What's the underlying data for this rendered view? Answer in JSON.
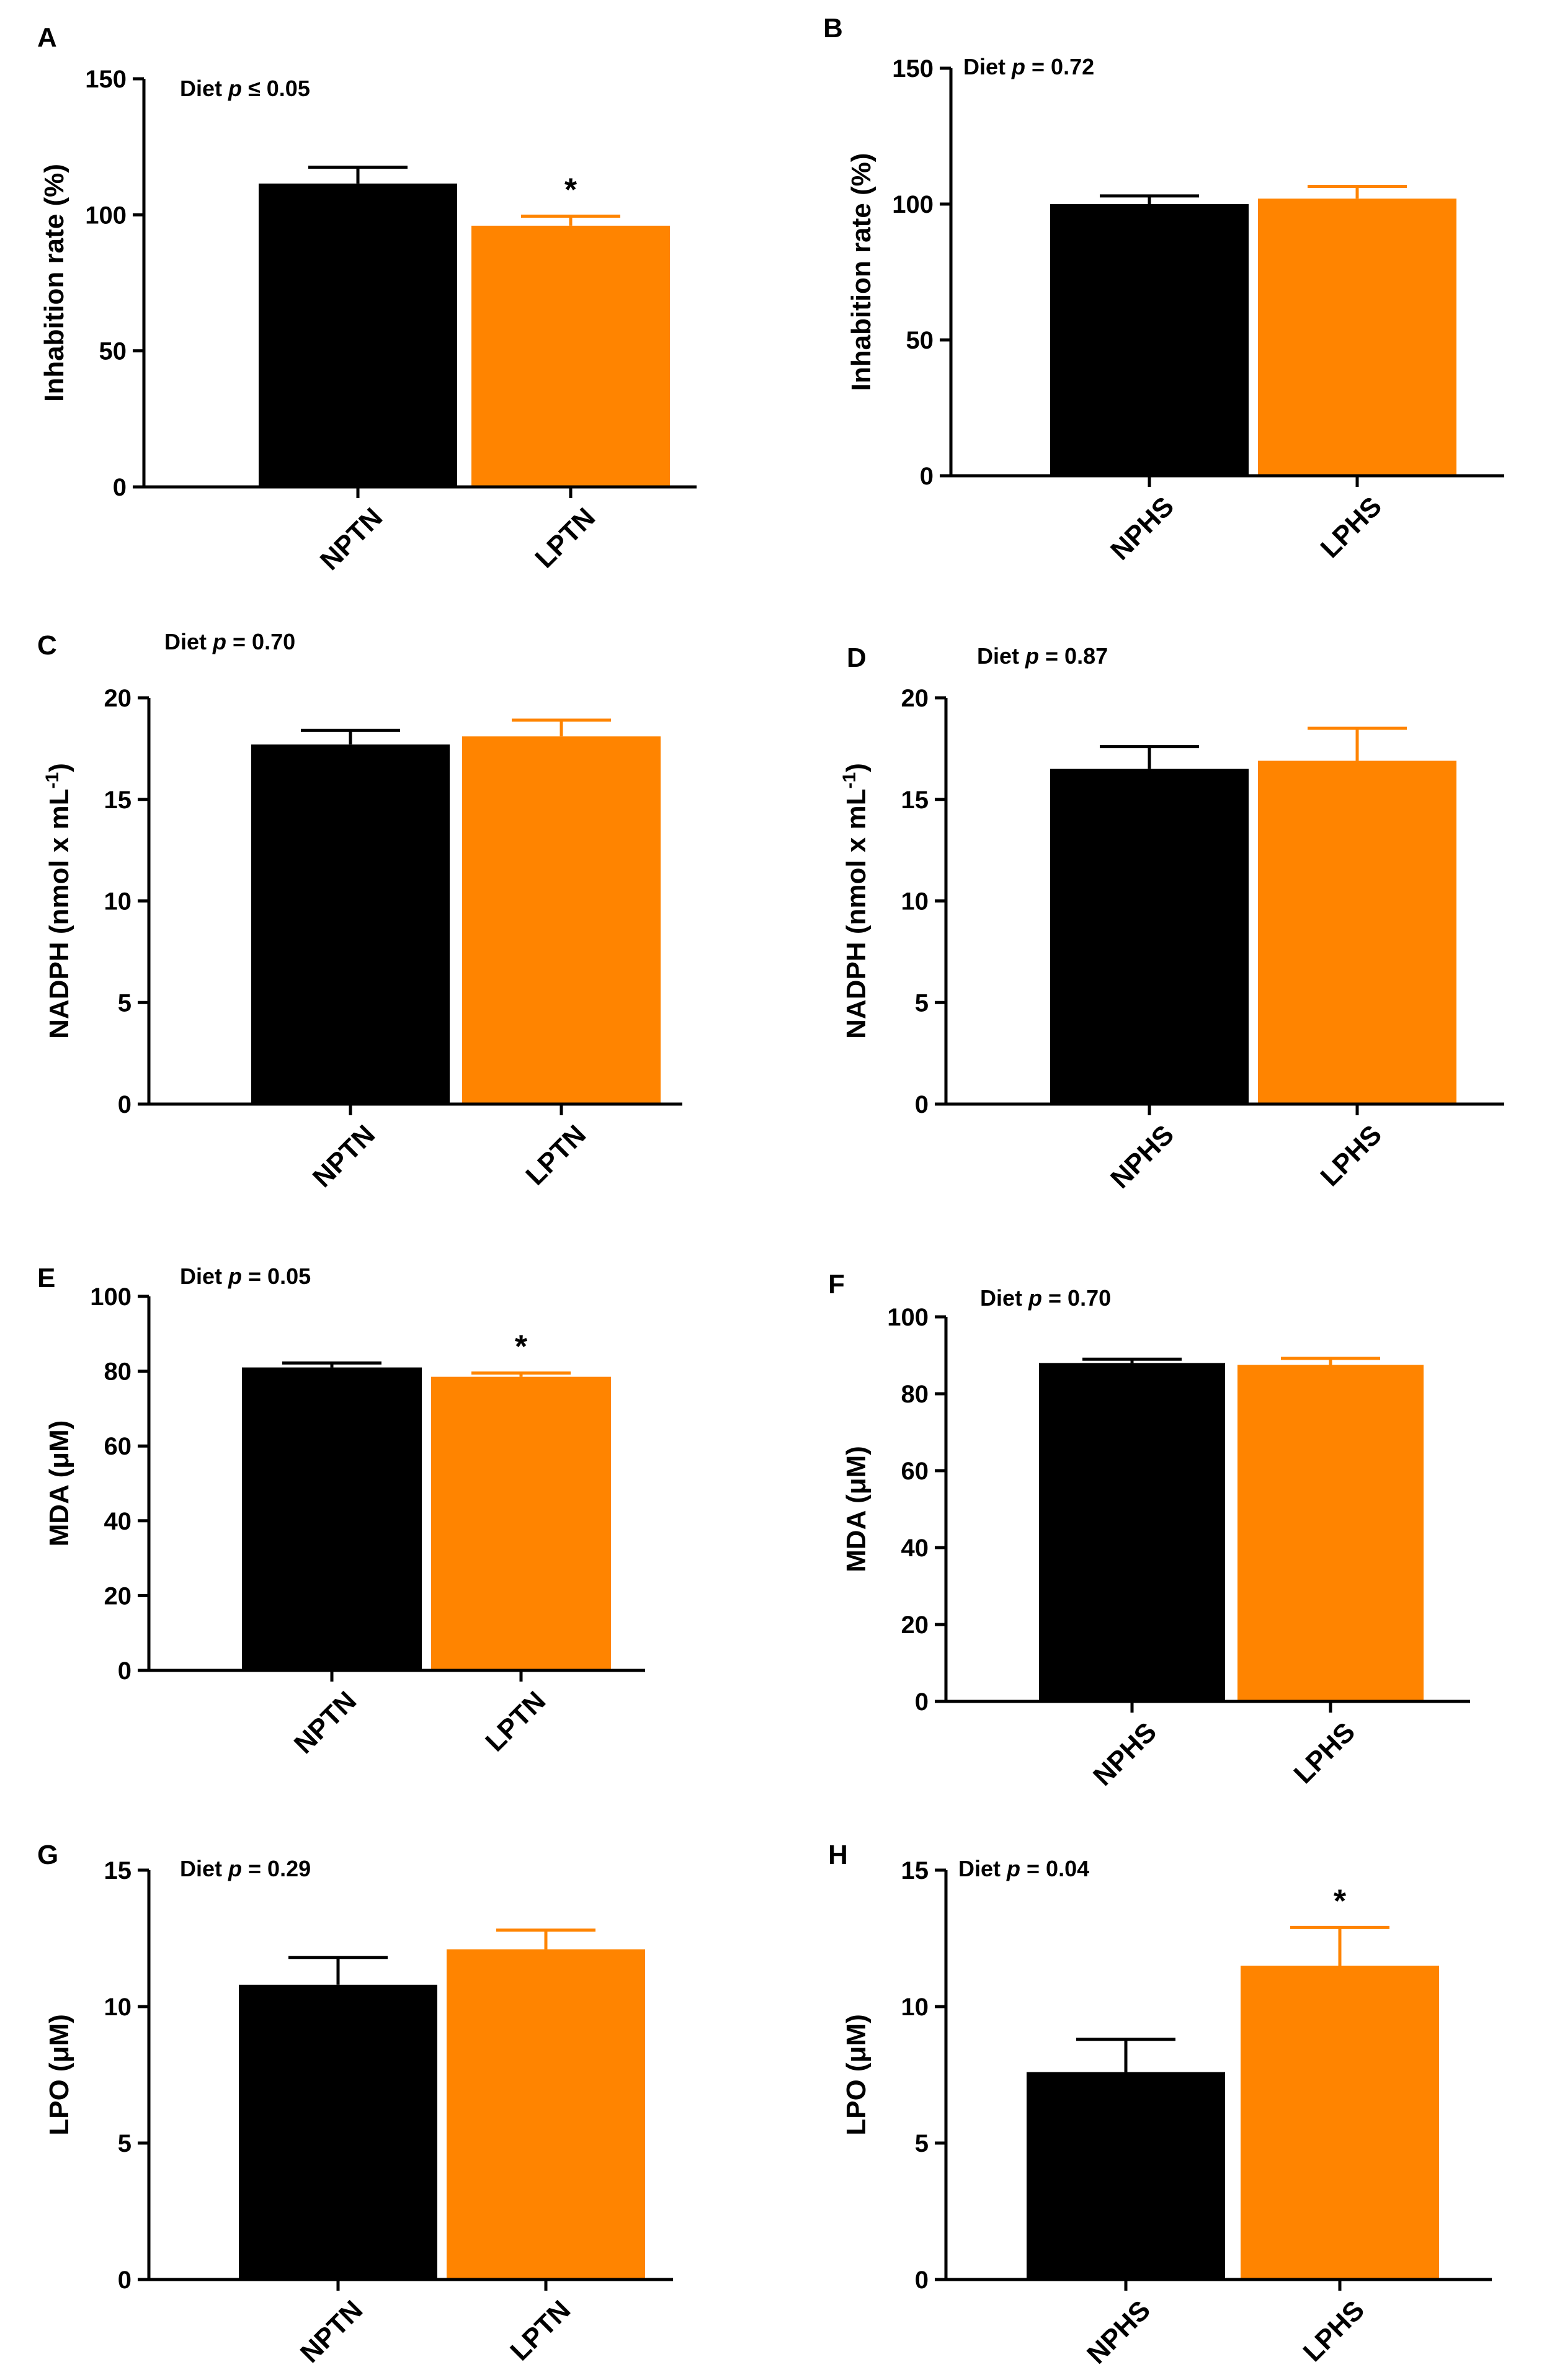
{
  "colors": {
    "normal": "#000000",
    "low": "#ff8400"
  },
  "chart_data": [
    {
      "letter": "A",
      "type": "bar",
      "categories": [
        "NPTN",
        "LPTN"
      ],
      "values": [
        111.5,
        96
      ],
      "errors": [
        6,
        3.5
      ],
      "ylabel": "Inhabition rate (%)",
      "ylim": [
        0,
        150
      ],
      "yticks": [
        0,
        50,
        100,
        150
      ],
      "annotation_prefix": "Diet ",
      "annotation_p": "p",
      "annotation_rel": " ≤ 0.05",
      "significance": [
        "",
        "*"
      ]
    },
    {
      "letter": "B",
      "type": "bar",
      "categories": [
        "NPHS",
        "LPHS"
      ],
      "values": [
        100,
        102
      ],
      "errors": [
        3,
        4.5
      ],
      "ylabel": "Inhabition rate (%)",
      "ylim": [
        0,
        150
      ],
      "yticks": [
        0,
        50,
        100,
        150
      ],
      "annotation_prefix": "Diet ",
      "annotation_p": "p",
      "annotation_rel": " = 0.72",
      "significance": [
        "",
        ""
      ]
    },
    {
      "letter": "C",
      "type": "bar",
      "categories": [
        "NPTN",
        "LPTN"
      ],
      "values": [
        17.7,
        18.1
      ],
      "errors": [
        0.7,
        0.8
      ],
      "ylabel": "NADPH (nmol x mL",
      "ylabel_sup": "-1",
      "ylabel_close": ")",
      "ylim": [
        0,
        20
      ],
      "yticks": [
        0,
        5,
        10,
        15,
        20
      ],
      "annotation_prefix": "Diet ",
      "annotation_p": "p",
      "annotation_rel": " = 0.70",
      "significance": [
        "",
        ""
      ]
    },
    {
      "letter": "D",
      "type": "bar",
      "categories": [
        "NPHS",
        "LPHS"
      ],
      "values": [
        16.5,
        16.9
      ],
      "errors": [
        1.1,
        1.6
      ],
      "ylabel": "NADPH (nmol x mL",
      "ylabel_sup": "-1",
      "ylabel_close": ")",
      "ylim": [
        0,
        20
      ],
      "yticks": [
        0,
        5,
        10,
        15,
        20
      ],
      "annotation_prefix": "Diet ",
      "annotation_p": "p",
      "annotation_rel": " = 0.87",
      "significance": [
        "",
        ""
      ]
    },
    {
      "letter": "E",
      "type": "bar",
      "categories": [
        "NPTN",
        "LPTN"
      ],
      "values": [
        81,
        78.5
      ],
      "errors": [
        1.2,
        1
      ],
      "ylabel": "MDA (μM)",
      "ylim": [
        0,
        100
      ],
      "yticks": [
        0,
        20,
        40,
        60,
        80,
        100
      ],
      "annotation_prefix": "Diet ",
      "annotation_p": "p",
      "annotation_rel": " = 0.05",
      "significance": [
        "",
        "*"
      ]
    },
    {
      "letter": "F",
      "type": "bar",
      "categories": [
        "NPHS",
        "LPHS"
      ],
      "values": [
        88,
        87.5
      ],
      "errors": [
        1,
        1.7
      ],
      "ylabel": "MDA (μM)",
      "ylim": [
        0,
        100
      ],
      "yticks": [
        0,
        20,
        40,
        60,
        80,
        100
      ],
      "annotation_prefix": "Diet ",
      "annotation_p": "p",
      "annotation_rel": " = 0.70",
      "significance": [
        "",
        ""
      ]
    },
    {
      "letter": "G",
      "type": "bar",
      "categories": [
        "NPTN",
        "LPTN"
      ],
      "values": [
        10.8,
        12.1
      ],
      "errors": [
        1,
        0.7
      ],
      "ylabel": "LPO (μM)",
      "ylim": [
        0,
        15
      ],
      "yticks": [
        0,
        5,
        10,
        15
      ],
      "annotation_prefix": "Diet ",
      "annotation_p": "p",
      "annotation_rel": " = 0.29",
      "significance": [
        "",
        ""
      ]
    },
    {
      "letter": "H",
      "type": "bar",
      "categories": [
        "NPHS",
        "LPHS"
      ],
      "values": [
        7.6,
        11.5
      ],
      "errors": [
        1.2,
        1.4
      ],
      "ylabel": "LPO (μM)",
      "ylim": [
        0,
        15
      ],
      "yticks": [
        0,
        5,
        10,
        15
      ],
      "annotation_prefix": "Diet ",
      "annotation_p": "p",
      "annotation_rel": " = 0.04",
      "significance": [
        "",
        "*"
      ]
    }
  ]
}
